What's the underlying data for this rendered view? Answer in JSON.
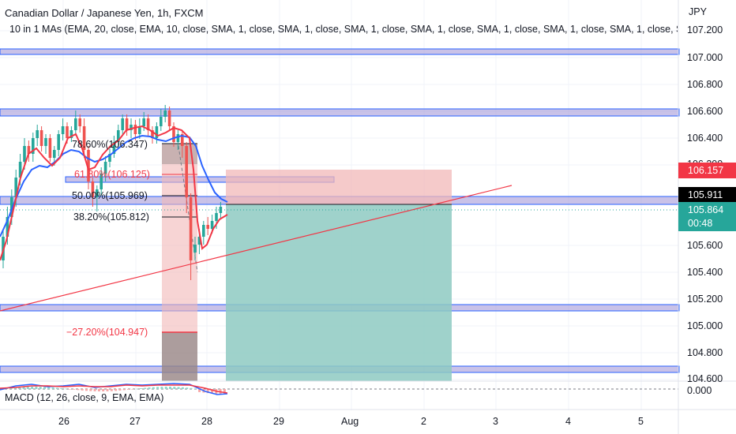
{
  "header": {
    "title": "Canadian Dollar / Japanese Yen, 1h, FXCM",
    "indicator": "10 in 1 MAs (EMA, 20, close, EMA, 10, close, SMA, 1, close, SMA, 1, close, SMA, 1, close, SMA, 1, close, SMA, 1, close, SMA, 1, close, SMA, 1, close, SMA, 1, close, SMA"
  },
  "price_axis": {
    "currency": "JPY",
    "ticks": [
      "107.200",
      "107.000",
      "106.800",
      "106.600",
      "106.400",
      "106.200",
      "105.600",
      "105.400",
      "105.200",
      "105.000",
      "104.800",
      "104.600"
    ]
  },
  "price_tags": {
    "target": {
      "value": "106.157",
      "color": "#f23645"
    },
    "level": {
      "value": "105.911",
      "color": "#000000"
    },
    "current": {
      "value": "105.864",
      "countdown": "00:48",
      "color": "#26a69a"
    }
  },
  "fibonacci": [
    {
      "label": "78.60%(106.347)",
      "color": "#131722"
    },
    {
      "label": "61.80%(106.125)",
      "color": "#f23645"
    },
    {
      "label": "50.00%(105.969)",
      "color": "#131722"
    },
    {
      "label": "38.20%(105.812)",
      "color": "#131722"
    },
    {
      "label": "−27.20%(104.947)",
      "color": "#f23645"
    }
  ],
  "time_axis": [
    "26",
    "27",
    "28",
    "29",
    "Aug",
    "2",
    "3",
    "4",
    "5"
  ],
  "macd": {
    "label": "MACD (12, 26, close, 9, EMA, EMA)",
    "zero_label": "0.000"
  },
  "colors": {
    "zone_fill": "#9c8fd6",
    "zone_border": "#2962ff",
    "ema_fast": "#f23645",
    "ema_slow": "#2962ff",
    "up_candle": "#26a69a",
    "down_candle": "#ef5350",
    "trend_line": "#f23645",
    "stop_zone": "#f2b8b8",
    "target_zone": "#8ecac2"
  }
}
